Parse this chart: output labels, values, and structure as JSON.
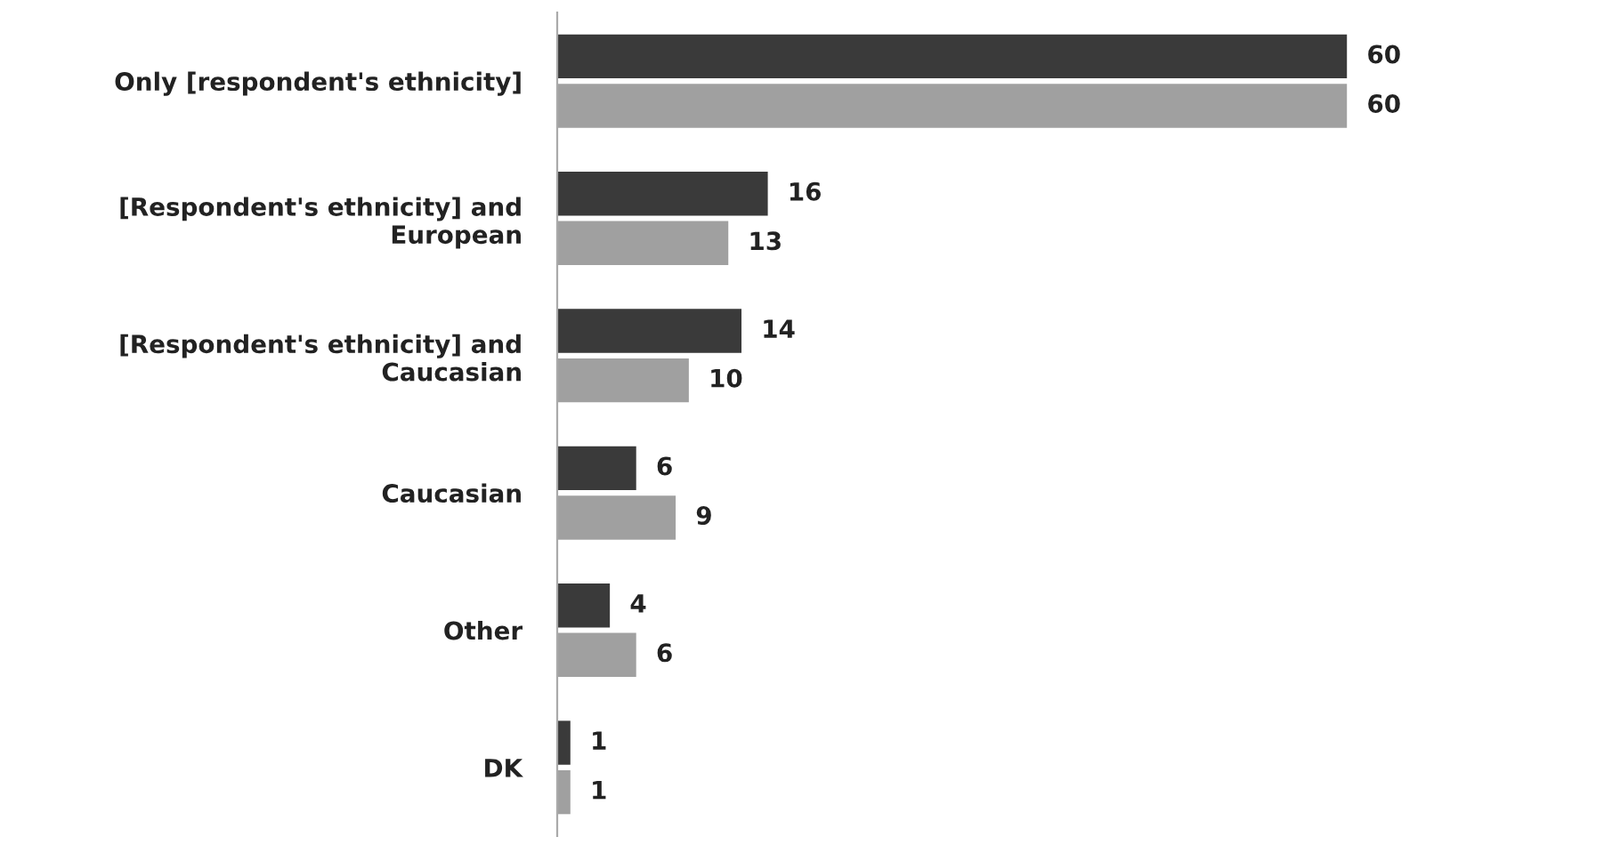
{
  "chart_data": {
    "type": "bar",
    "orientation": "horizontal",
    "categories": [
      "Only [respondent's ethnicity]",
      "[Respondent's ethnicity] and\nEuropean",
      "[Respondent's ethnicity] and\nCaucasian",
      "Caucasian",
      "Other",
      "DK"
    ],
    "series": [
      {
        "color": "#3a3a3a",
        "values": [
          60,
          16,
          14,
          6,
          4,
          1
        ]
      },
      {
        "color": "#a0a0a0",
        "values": [
          60,
          13,
          10,
          9,
          6,
          1
        ]
      }
    ],
    "data_labels": true,
    "grid": false,
    "legend": false
  }
}
